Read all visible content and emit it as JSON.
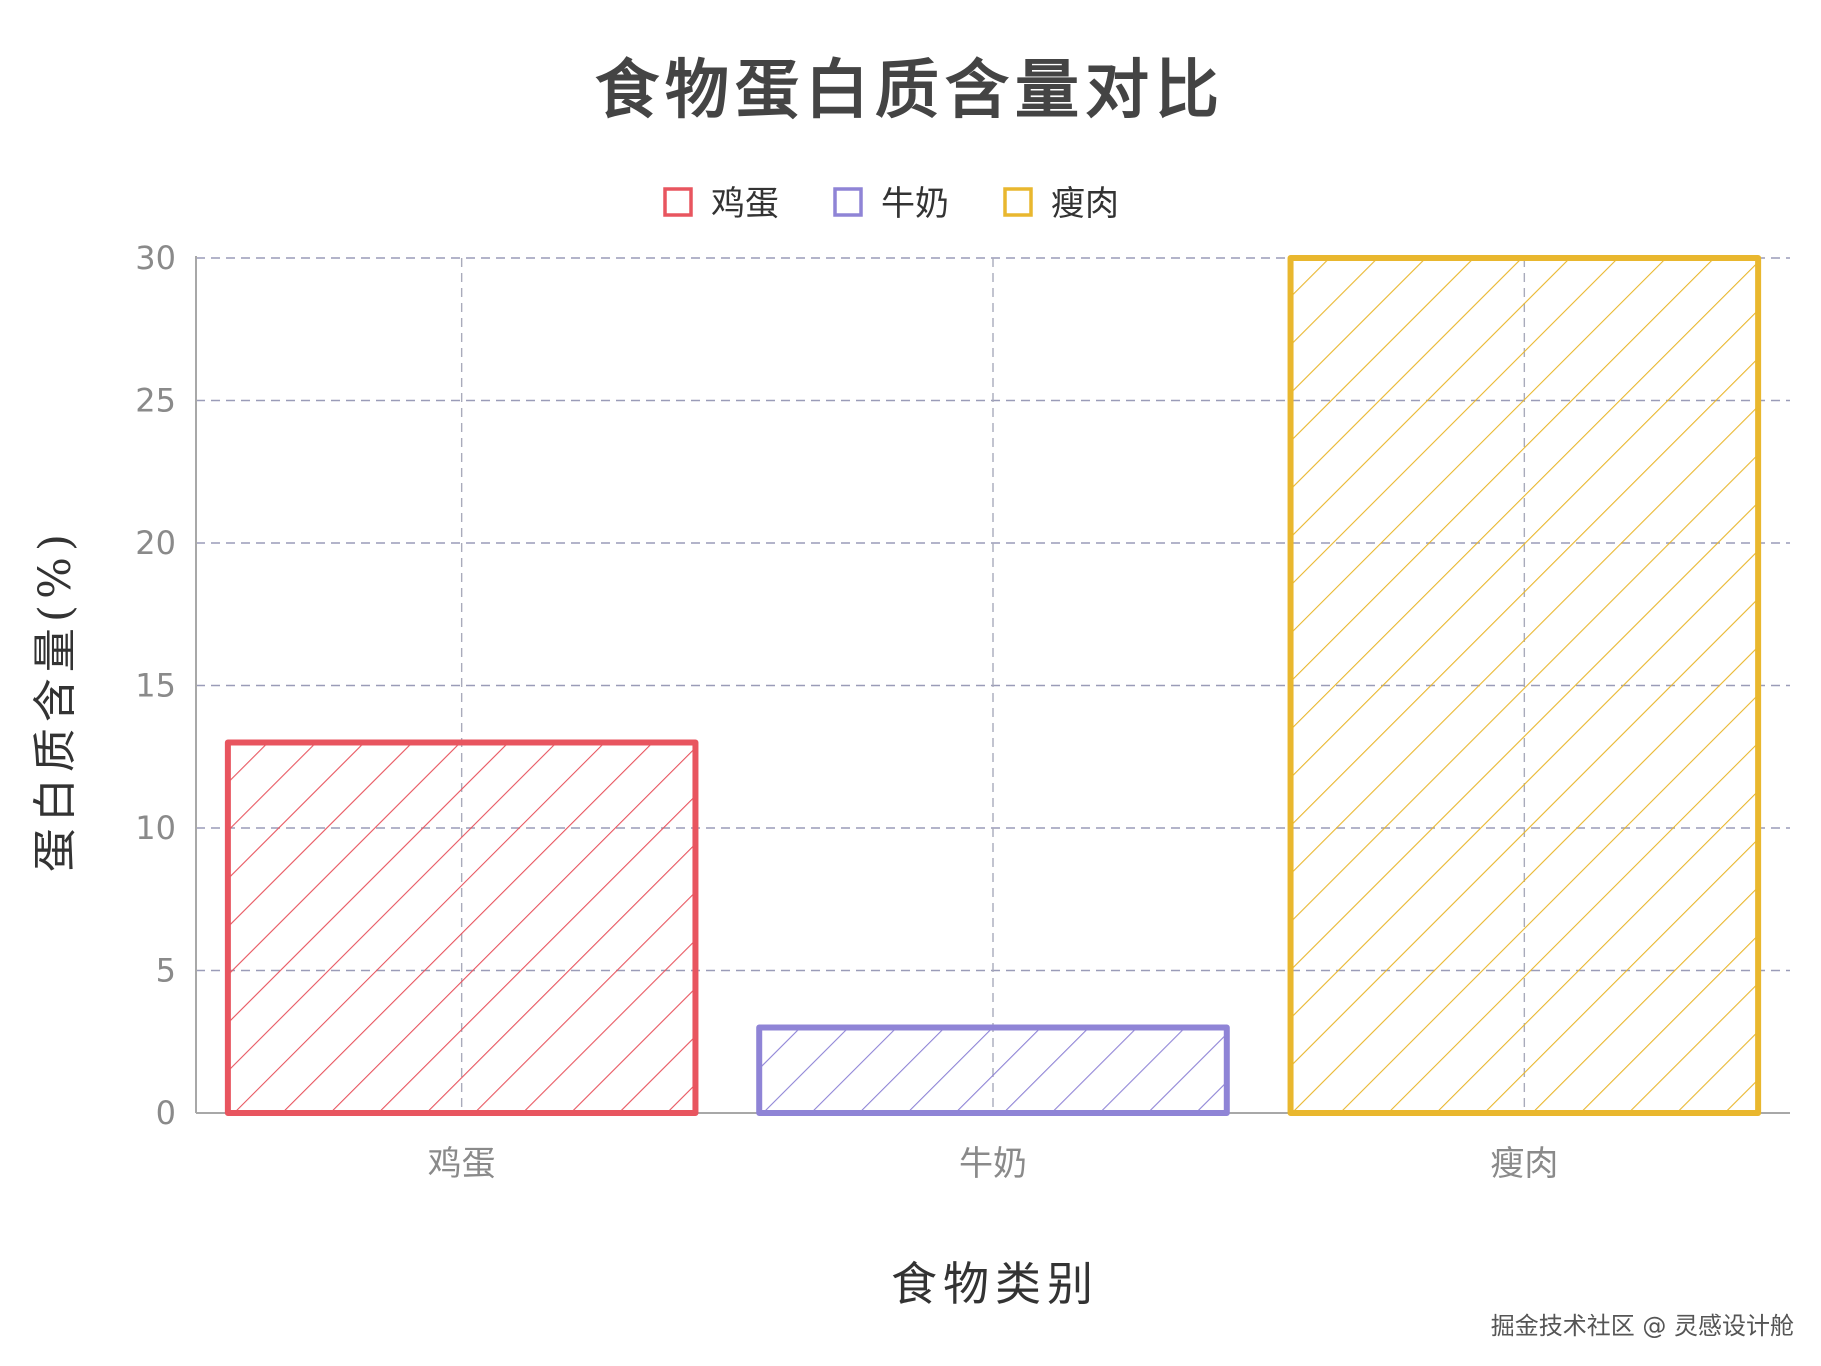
{
  "chart_data": {
    "type": "bar",
    "title": "食物蛋白质含量对比",
    "xlabel": "食物类别",
    "ylabel": "蛋白质含量(%)",
    "categories": [
      "鸡蛋",
      "牛奶",
      "瘦肉"
    ],
    "values": [
      13,
      3,
      30
    ],
    "colors": [
      "#e8555f",
      "#8f84d6",
      "#e9b72e"
    ],
    "ylim": [
      0,
      30
    ],
    "yticks": [
      0,
      5,
      10,
      15,
      20,
      25,
      30
    ],
    "legend": {
      "placement": "top-center",
      "entries": [
        "鸡蛋",
        "牛奶",
        "瘦肉"
      ]
    },
    "grid": true,
    "style": "hand-drawn hatched"
  },
  "watermark": "掘金技术社区 @ 灵感设计舱"
}
